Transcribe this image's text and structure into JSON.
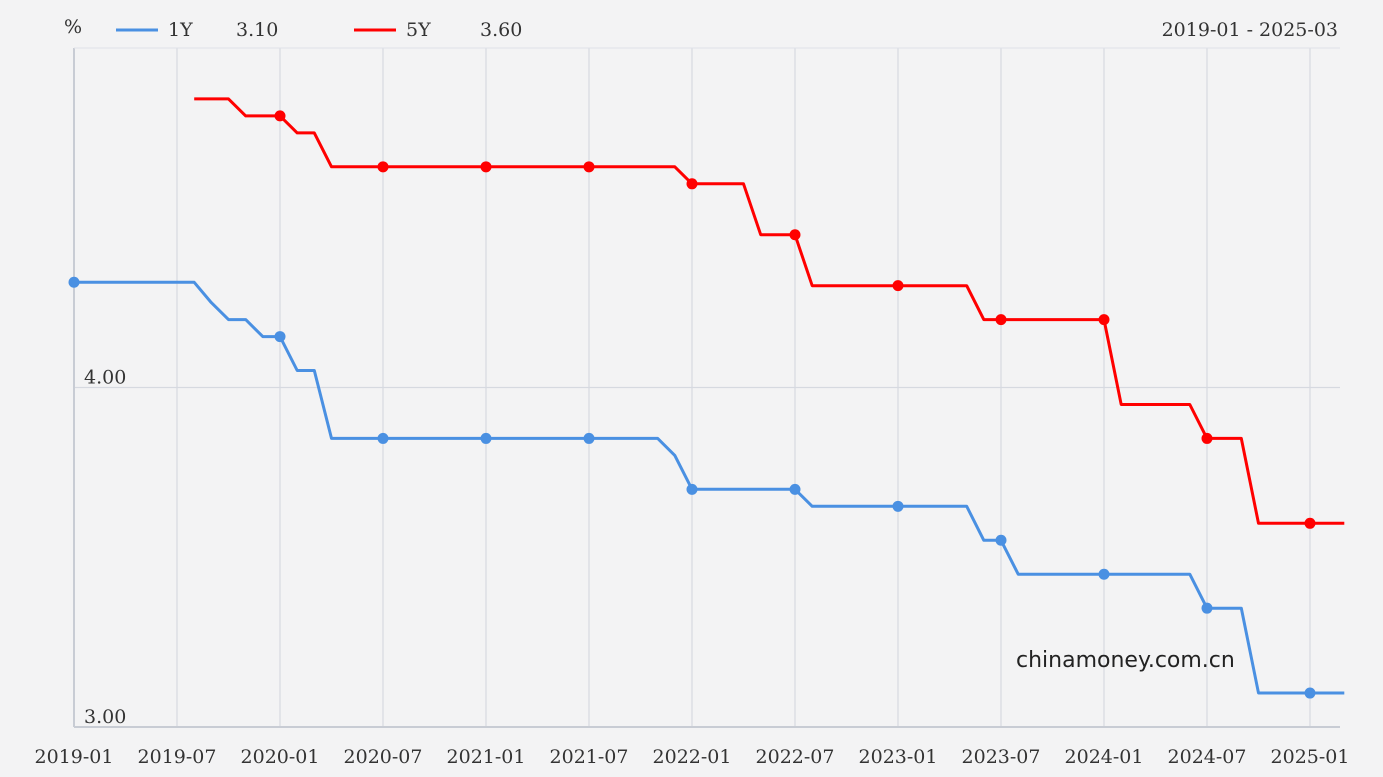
{
  "unit_label": "%",
  "date_range": "2019-01 - 2025-03",
  "watermark": "chinamoney.com.cn",
  "chart_data": {
    "type": "line",
    "step": true,
    "y_unit": "%",
    "ylim": [
      3.0,
      5.0
    ],
    "y_ticks": [
      {
        "value": 3.0,
        "label": "3.00"
      },
      {
        "value": 4.0,
        "label": "4.00"
      }
    ],
    "x_ticks": [
      "2019-01",
      "2019-07",
      "2020-01",
      "2020-07",
      "2021-01",
      "2021-07",
      "2022-01",
      "2022-07",
      "2023-01",
      "2023-07",
      "2024-01",
      "2024-07",
      "2025-01"
    ],
    "xlim": [
      "2019-01",
      "2025-03"
    ],
    "grid": true,
    "legend_position": "top-left",
    "series": [
      {
        "name": "1Y",
        "latest_label": "3.10",
        "color": "#4a90e2",
        "points": [
          [
            "2019-01",
            4.31
          ],
          [
            "2019-08",
            4.31
          ],
          [
            "2019-09",
            4.25
          ],
          [
            "2019-10",
            4.2
          ],
          [
            "2019-11",
            4.2
          ],
          [
            "2019-12",
            4.15
          ],
          [
            "2020-01",
            4.15
          ],
          [
            "2020-02",
            4.05
          ],
          [
            "2020-03",
            4.05
          ],
          [
            "2020-04",
            3.85
          ],
          [
            "2020-07",
            3.85
          ],
          [
            "2021-01",
            3.85
          ],
          [
            "2021-07",
            3.85
          ],
          [
            "2021-11",
            3.85
          ],
          [
            "2021-12",
            3.8
          ],
          [
            "2022-01",
            3.7
          ],
          [
            "2022-07",
            3.7
          ],
          [
            "2022-08",
            3.65
          ],
          [
            "2023-01",
            3.65
          ],
          [
            "2023-05",
            3.65
          ],
          [
            "2023-06",
            3.55
          ],
          [
            "2023-07",
            3.55
          ],
          [
            "2023-08",
            3.45
          ],
          [
            "2024-01",
            3.45
          ],
          [
            "2024-05",
            3.45
          ],
          [
            "2024-06",
            3.45
          ],
          [
            "2024-07",
            3.35
          ],
          [
            "2024-08",
            3.35
          ],
          [
            "2024-09",
            3.35
          ],
          [
            "2024-10",
            3.1
          ],
          [
            "2025-01",
            3.1
          ],
          [
            "2025-03",
            3.1
          ]
        ],
        "markers": [
          "2019-01",
          "2019-07",
          "2020-01",
          "2020-07",
          "2021-01",
          "2021-07",
          "2022-01",
          "2022-07",
          "2023-01",
          "2023-07",
          "2024-01",
          "2024-07",
          "2025-01"
        ]
      },
      {
        "name": "5Y",
        "latest_label": "3.60",
        "color": "#ff0000",
        "points": [
          [
            "2019-08",
            4.85
          ],
          [
            "2019-10",
            4.85
          ],
          [
            "2019-11",
            4.8
          ],
          [
            "2020-01",
            4.8
          ],
          [
            "2020-02",
            4.75
          ],
          [
            "2020-03",
            4.75
          ],
          [
            "2020-04",
            4.65
          ],
          [
            "2020-07",
            4.65
          ],
          [
            "2021-01",
            4.65
          ],
          [
            "2021-07",
            4.65
          ],
          [
            "2021-12",
            4.65
          ],
          [
            "2022-01",
            4.6
          ],
          [
            "2022-02",
            4.6
          ],
          [
            "2022-03",
            4.6
          ],
          [
            "2022-04",
            4.6
          ],
          [
            "2022-05",
            4.45
          ],
          [
            "2022-07",
            4.45
          ],
          [
            "2022-08",
            4.3
          ],
          [
            "2023-01",
            4.3
          ],
          [
            "2023-05",
            4.3
          ],
          [
            "2023-06",
            4.2
          ],
          [
            "2023-07",
            4.2
          ],
          [
            "2024-01",
            4.2
          ],
          [
            "2024-02",
            3.95
          ],
          [
            "2024-05",
            3.95
          ],
          [
            "2024-06",
            3.95
          ],
          [
            "2024-07",
            3.85
          ],
          [
            "2024-08",
            3.85
          ],
          [
            "2024-09",
            3.85
          ],
          [
            "2024-10",
            3.6
          ],
          [
            "2025-01",
            3.6
          ],
          [
            "2025-03",
            3.6
          ]
        ],
        "markers": [
          "2020-01",
          "2020-07",
          "2021-01",
          "2021-07",
          "2022-01",
          "2022-07",
          "2023-01",
          "2023-07",
          "2024-01",
          "2024-07",
          "2025-01"
        ]
      }
    ]
  }
}
